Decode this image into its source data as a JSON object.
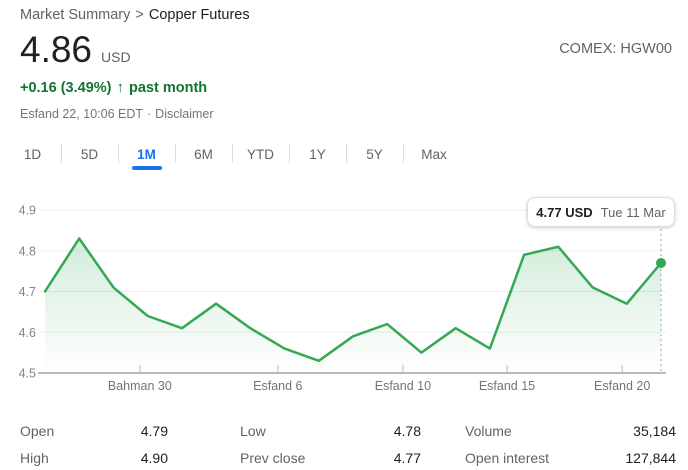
{
  "breadcrumb": {
    "parent": "Market Summary",
    "separator": ">",
    "current": "Copper Futures"
  },
  "exchange_label": "COMEX: HGW00",
  "quote": {
    "price": "4.86",
    "currency": "USD",
    "change": "+0.16 (3.49%)",
    "arrow": "↑",
    "period": "past month",
    "timestamp": "Esfand 22, 10:06 EDT",
    "bullet": "·",
    "disclaimer": "Disclaimer"
  },
  "range_tabs": {
    "items": [
      {
        "label": "1D",
        "active": false
      },
      {
        "label": "5D",
        "active": false
      },
      {
        "label": "1M",
        "active": true
      },
      {
        "label": "6M",
        "active": false
      },
      {
        "label": "YTD",
        "active": false
      },
      {
        "label": "1Y",
        "active": false
      },
      {
        "label": "5Y",
        "active": false
      },
      {
        "label": "Max",
        "active": false
      }
    ]
  },
  "chart_data": {
    "type": "line",
    "title": "Copper Futures price, past month",
    "unit": "USD",
    "line_color": "#34a853",
    "values": [
      4.7,
      4.83,
      4.71,
      4.64,
      4.61,
      4.67,
      4.61,
      4.56,
      4.53,
      4.59,
      4.62,
      4.55,
      4.61,
      4.56,
      4.79,
      4.81,
      4.71,
      4.67,
      4.77
    ],
    "x_axis": {
      "unit": "trading days, Persian calendar",
      "ticks": [
        {
          "label": "Bahman 30",
          "f": 0.154
        },
        {
          "label": "Esfand 6",
          "f": 0.378
        },
        {
          "label": "Esfand 10",
          "f": 0.581
        },
        {
          "label": "Esfand 15",
          "f": 0.75
        },
        {
          "label": "Esfand 20",
          "f": 0.937
        }
      ]
    },
    "y_axis": {
      "ticks": [
        4.5,
        4.6,
        4.7,
        4.8,
        4.9
      ],
      "range": [
        4.5,
        4.9
      ]
    },
    "grid": true,
    "legend": false,
    "last_point": {
      "value": 4.77,
      "date": "Tue 11 Mar"
    },
    "tooltip": {
      "price": "4.77 USD",
      "date": "Tue 11 Mar"
    }
  },
  "stats": {
    "rows": [
      [
        {
          "label": "Open",
          "value": "4.79"
        },
        {
          "label": "Low",
          "value": "4.78"
        },
        {
          "label": "Volume",
          "value": "35,184"
        }
      ],
      [
        {
          "label": "High",
          "value": "4.90"
        },
        {
          "label": "Prev close",
          "value": "4.77"
        },
        {
          "label": "Open interest",
          "value": "127,844"
        }
      ]
    ]
  },
  "colors": {
    "accent_blue": "#1a73e8",
    "change_green": "#137333",
    "line_green": "#34a853",
    "text_dark": "#202124",
    "text_gray": "#5f6368",
    "grid_gray": "#ebedef",
    "axis_gray": "#b7bbc0"
  }
}
